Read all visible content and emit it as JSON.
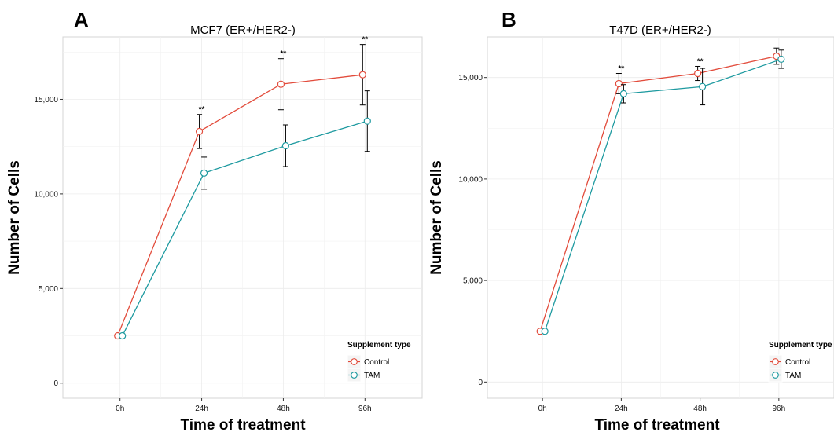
{
  "chart_data": [
    {
      "type": "line",
      "panel": "A",
      "title": "MCF7 (ER+/HER2-)",
      "xlabel": "Time of treatment",
      "ylabel": "Number of Cells",
      "categories": [
        "0h",
        "24h",
        "48h",
        "96h"
      ],
      "ylim": [
        -800,
        18300
      ],
      "yticks": [
        0,
        5000,
        10000,
        15000
      ],
      "ytick_labels": [
        "0",
        "5,000",
        "10,000",
        "15,000"
      ],
      "grid": true,
      "legend": {
        "title": "Supplement type",
        "position": "bottom-right"
      },
      "series": [
        {
          "name": "Control",
          "color": "#e24b3b",
          "values": [
            2500,
            13300,
            15800,
            16300
          ],
          "err": [
            0,
            900,
            1350,
            1600
          ]
        },
        {
          "name": "TAM",
          "color": "#1e9aa0",
          "values": [
            2500,
            11100,
            12550,
            13850
          ],
          "err": [
            0,
            850,
            1100,
            1600
          ]
        }
      ],
      "significance": [
        {
          "category": "24h",
          "label": "**"
        },
        {
          "category": "48h",
          "label": "**"
        },
        {
          "category": "96h",
          "label": "**"
        }
      ]
    },
    {
      "type": "line",
      "panel": "B",
      "title": "T47D (ER+/HER2-)",
      "xlabel": "Time of treatment",
      "ylabel": "Number of Cells",
      "categories": [
        "0h",
        "24h",
        "48h",
        "96h"
      ],
      "ylim": [
        -800,
        17000
      ],
      "yticks": [
        0,
        5000,
        10000,
        15000
      ],
      "ytick_labels": [
        "0",
        "5,000",
        "10,000",
        "15,000"
      ],
      "grid": true,
      "legend": {
        "title": "Supplement type",
        "position": "bottom-right"
      },
      "series": [
        {
          "name": "Control",
          "color": "#e24b3b",
          "values": [
            2500,
            14700,
            15200,
            16050
          ],
          "err": [
            0,
            500,
            350,
            400
          ]
        },
        {
          "name": "TAM",
          "color": "#1e9aa0",
          "values": [
            2500,
            14200,
            14550,
            15900
          ],
          "err": [
            0,
            450,
            900,
            450
          ]
        }
      ],
      "significance": [
        {
          "category": "24h",
          "label": "**"
        },
        {
          "category": "48h",
          "label": "**"
        }
      ]
    }
  ]
}
